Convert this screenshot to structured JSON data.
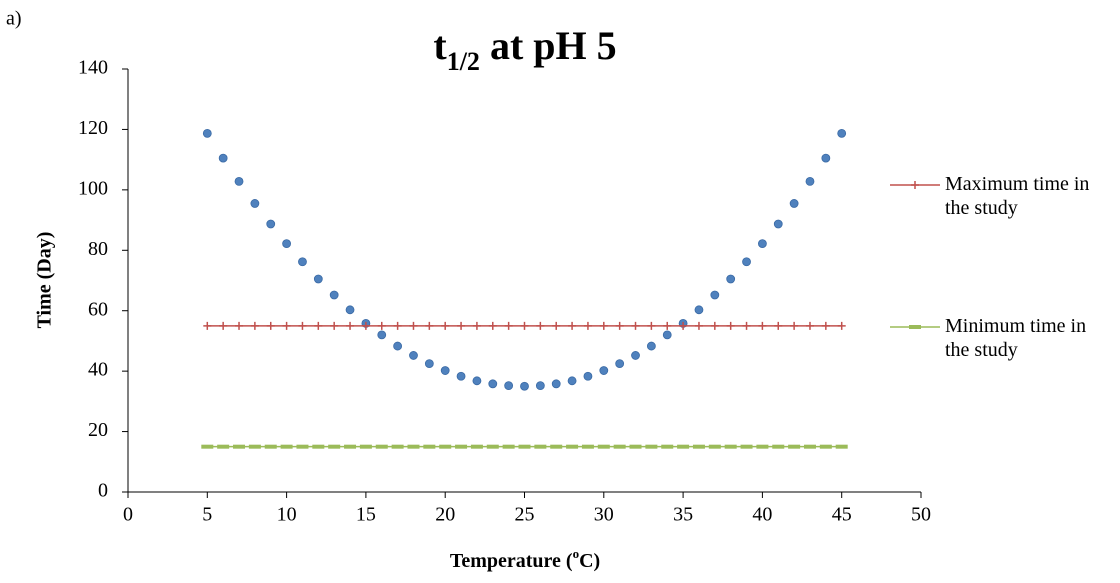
{
  "chart_data": {
    "type": "scatter",
    "panel_label": "a)",
    "title": {
      "main": "t",
      "subscript": "1/2",
      "rest": " at pH 5"
    },
    "x_label": {
      "main": "Temperature (",
      "superscript": "o",
      "rest": "C)"
    },
    "y_label": "Time (Day)",
    "x": [
      5,
      6,
      7,
      8,
      9,
      10,
      11,
      12,
      13,
      14,
      15,
      16,
      17,
      18,
      19,
      20,
      21,
      22,
      23,
      24,
      25,
      26,
      27,
      28,
      29,
      30,
      31,
      32,
      33,
      34,
      35,
      36,
      37,
      38,
      39,
      40,
      41,
      42,
      43,
      44,
      45
    ],
    "series": [
      {
        "color": "#4f81bd",
        "marker": "circle",
        "line": false,
        "values": [
          118.7,
          110.5,
          102.8,
          95.5,
          88.7,
          82.2,
          76.2,
          70.5,
          65.2,
          60.3,
          55.8,
          52,
          48.3,
          45.2,
          42.5,
          40.2,
          38.3,
          36.8,
          35.8,
          35.2,
          35,
          35.2,
          35.8,
          36.8,
          38.3,
          40.2,
          42.5,
          45.2,
          48.3,
          52,
          55.8,
          60.3,
          65.2,
          70.5,
          76.2,
          82.2,
          88.7,
          95.5,
          102.8,
          110.5,
          118.7
        ]
      },
      {
        "name": "Maximum time in the study",
        "color": "#c0504d",
        "marker": "plus",
        "line": true,
        "values": [
          55,
          55,
          55,
          55,
          55,
          55,
          55,
          55,
          55,
          55,
          55,
          55,
          55,
          55,
          55,
          55,
          55,
          55,
          55,
          55,
          55,
          55,
          55,
          55,
          55,
          55,
          55,
          55,
          55,
          55,
          55,
          55,
          55,
          55,
          55,
          55,
          55,
          55,
          55,
          55,
          55
        ]
      },
      {
        "name": "Minimum time in the study",
        "color": "#9bbb59",
        "marker": "dash",
        "line": true,
        "values": [
          15,
          15,
          15,
          15,
          15,
          15,
          15,
          15,
          15,
          15,
          15,
          15,
          15,
          15,
          15,
          15,
          15,
          15,
          15,
          15,
          15,
          15,
          15,
          15,
          15,
          15,
          15,
          15,
          15,
          15,
          15,
          15,
          15,
          15,
          15,
          15,
          15,
          15,
          15,
          15,
          15
        ]
      }
    ],
    "xlim": [
      0,
      50
    ],
    "xticks": [
      0,
      5,
      10,
      15,
      20,
      25,
      30,
      35,
      40,
      45,
      50
    ],
    "ylim": [
      0,
      140
    ],
    "yticks": [
      0,
      20,
      40,
      60,
      80,
      100,
      120,
      140
    ],
    "grid": false,
    "legend": "right"
  }
}
